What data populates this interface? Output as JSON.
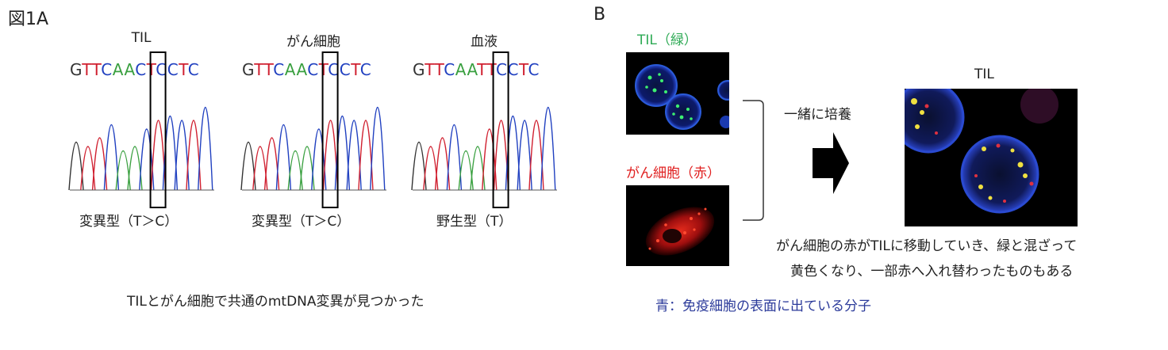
{
  "panel_a": {
    "label": "図1A",
    "groups": [
      {
        "title": "TIL",
        "sequence": "GTTCAACTCCTC",
        "result": "変異型（T＞C）"
      },
      {
        "title": "がん細胞",
        "sequence": "GTTCAACTCCTC",
        "result": "変異型（T＞C）"
      },
      {
        "title": "血液",
        "sequence": "GTTCAATTCCTC",
        "result": "野生型（T）"
      }
    ],
    "caption": "TILとがん細胞で共通のmtDNA変異が見つかった"
  },
  "panel_b": {
    "label": "B",
    "til_label": "TIL（緑）",
    "cancer_label": "がん細胞（赤）",
    "coculture_label": "一緒に培養",
    "result_title": "TIL",
    "description_line1": "がん細胞の赤がTILに移動していき、緑と混ざって",
    "description_line2": "黄色くなり、一部赤へ入れ替わったものもある",
    "blue_caption": "青：免疫細胞の表面に出ている分子"
  },
  "colors": {
    "A": "#3aa040",
    "T": "#d02030",
    "C": "#2040c0",
    "G": "#333333"
  }
}
